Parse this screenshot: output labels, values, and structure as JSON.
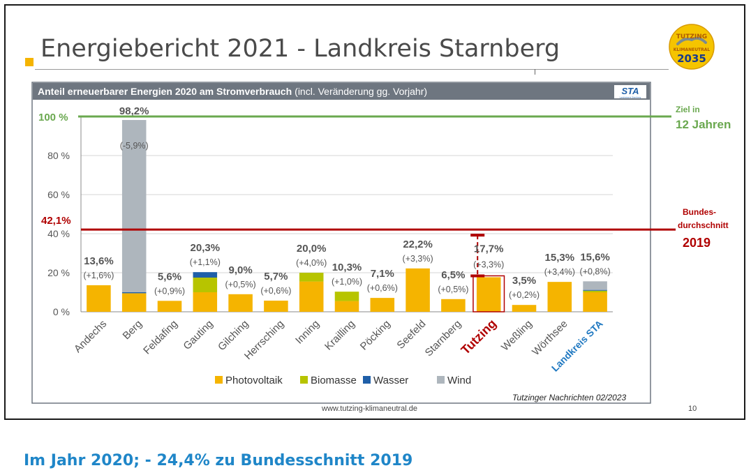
{
  "slide": {
    "title": "Energiebericht 2021 - Landkreis Starnberg",
    "logo": {
      "line1": "TUTZING",
      "line2": "KLIMANEUTRAL",
      "year": "2035"
    },
    "footer_url": "www.tutzing-klimaneutral.de",
    "page_number": "10",
    "source": "Tutzinger Nachrichten 02/2023",
    "caption": "Im Jahr 2020; - 24,4% zu Bundesschnitt 2019"
  },
  "colors": {
    "photovoltaik": "#f5b400",
    "biomasse": "#b7c400",
    "wasser": "#1f5fa8",
    "wind": "#aeb6bd",
    "header": "#6e7680",
    "goal": "#6aa84f",
    "national": "#b00000",
    "landkreis": "#1f78c1"
  },
  "chart_data": {
    "type": "bar",
    "stacked": true,
    "header_bold": "Anteil erneuerbarer Energien 2020 am Stromverbrauch",
    "header_rest": "(incl. Veränderung gg. Vorjahr)",
    "header_badge": "STA",
    "header_badge_sub": "Landratsamt Starnberg",
    "ylim": [
      0,
      100
    ],
    "yticks": [
      "0 %",
      "20 %",
      "40 %",
      "60 %",
      "80 %",
      "100 %"
    ],
    "categories": [
      "Andechs",
      "Berg",
      "Feldafing",
      "Gauting",
      "Gilching",
      "Herrsching",
      "Inning",
      "Krailling",
      "Pöcking",
      "Seefeld",
      "Starnberg",
      "Tutzing",
      "Weßling",
      "Wörthsee",
      "Landkreis STA"
    ],
    "totals": [
      "13,6%",
      "98,2%",
      "5,6%",
      "20,3%",
      "9,0%",
      "5,7%",
      "20,0%",
      "10,3%",
      "7,1%",
      "22,2%",
      "6,5%",
      "17,7%",
      "3,5%",
      "15,3%",
      "15,6%"
    ],
    "changes": [
      "(+1,6%)",
      "(-5,9%)",
      "(+0,9%)",
      "(+1,1%)",
      "(+0,5%)",
      "(+0,6%)",
      "(+4,0%)",
      "(+1,0%)",
      "(+0,6%)",
      "(+3,3%)",
      "(+0,5%)",
      "(+3,3%)",
      "(+0,2%)",
      "(+3,4%)",
      "(+0,8%)"
    ],
    "series": [
      {
        "name": "Photovoltaik",
        "values": [
          13.6,
          9.5,
          5.6,
          10.0,
          9.0,
          5.7,
          15.5,
          5.5,
          7.1,
          22.2,
          6.5,
          17.7,
          3.5,
          15.3,
          10.0
        ]
      },
      {
        "name": "Biomasse",
        "values": [
          0,
          0,
          0,
          7.5,
          0,
          0,
          4.5,
          4.8,
          0,
          0,
          0,
          0,
          0,
          0,
          0.8
        ]
      },
      {
        "name": "Wasser",
        "values": [
          0,
          0.5,
          0,
          2.8,
          0,
          0,
          0,
          0,
          0,
          0,
          0,
          0,
          0,
          0,
          0.4
        ]
      },
      {
        "name": "Wind",
        "values": [
          0,
          88.2,
          0,
          0,
          0,
          0,
          0,
          0,
          0,
          0,
          0,
          0,
          0,
          0,
          4.4
        ]
      }
    ],
    "goal": {
      "value": 100,
      "label_left": "100 %",
      "label_right_1": "Ziel in",
      "label_right_2": "12 Jahren"
    },
    "national_average": {
      "value": 42.1,
      "label_left": "42,1%",
      "label_right_1": "Bundes-",
      "label_right_2": "durchschnitt",
      "label_right_3": "2019"
    },
    "highlight_category": "Tutzing",
    "legend_position": "bottom"
  }
}
